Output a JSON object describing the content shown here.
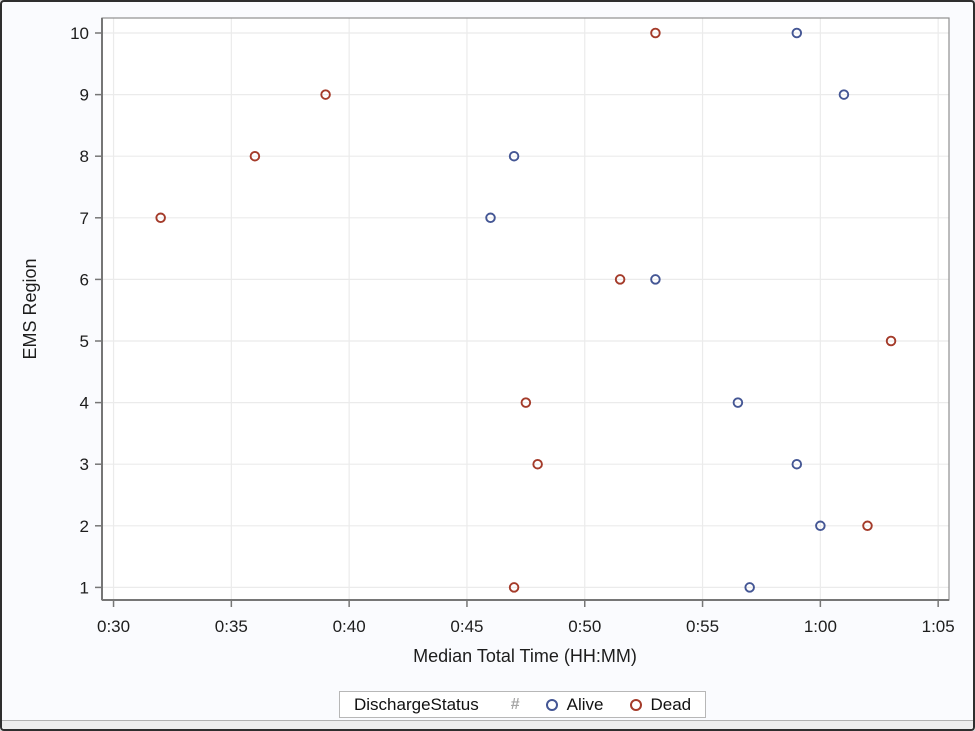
{
  "window": {
    "background": "#FAFBFE",
    "border_color": "#2e2e2e",
    "footer_strip_color": "#ededed"
  },
  "chart_data": {
    "type": "scatter",
    "title": "",
    "xlabel": "Median Total Time (HH:MM)",
    "ylabel": "EMS Region",
    "x_ticks": [
      {
        "minutes": 30,
        "label": "0:30"
      },
      {
        "minutes": 35,
        "label": "0:35"
      },
      {
        "minutes": 40,
        "label": "0:40"
      },
      {
        "minutes": 45,
        "label": "0:45"
      },
      {
        "minutes": 50,
        "label": "0:50"
      },
      {
        "minutes": 55,
        "label": "0:55"
      },
      {
        "minutes": 60,
        "label": "1:00"
      },
      {
        "minutes": 65,
        "label": "1:05"
      }
    ],
    "y_ticks": [
      1,
      2,
      3,
      4,
      5,
      6,
      7,
      8,
      9,
      10
    ],
    "xlim_minutes": [
      29.51,
      65.46
    ],
    "ylim": [
      0.7955,
      10.2435
    ],
    "grid": true,
    "gridline_color": "#ebebeb",
    "frame_color": "#8f8f8f",
    "axis_line_color": "#767676",
    "legend": {
      "position": "bottom",
      "title": "DischargeStatus",
      "missing_symbol": "#",
      "missing_symbol_color": "#a6a6a6",
      "entries": [
        {
          "label": "Alive",
          "marker": "open-circle",
          "color": "#445694"
        },
        {
          "label": "Dead",
          "marker": "open-circle",
          "color": "#A43B2A"
        }
      ]
    },
    "series": [
      {
        "name": "Alive",
        "color": "#445694",
        "marker": "open-circle",
        "points": [
          {
            "region": 1,
            "minutes": 57
          },
          {
            "region": 2,
            "minutes": 60
          },
          {
            "region": 3,
            "minutes": 59
          },
          {
            "region": 4,
            "minutes": 56.5
          },
          {
            "region": 6,
            "minutes": 53
          },
          {
            "region": 7,
            "minutes": 46
          },
          {
            "region": 8,
            "minutes": 47
          },
          {
            "region": 9,
            "minutes": 61
          },
          {
            "region": 10,
            "minutes": 59
          }
        ]
      },
      {
        "name": "Dead",
        "color": "#A43B2A",
        "marker": "open-circle",
        "points": [
          {
            "region": 1,
            "minutes": 47
          },
          {
            "region": 2,
            "minutes": 62
          },
          {
            "region": 3,
            "minutes": 48
          },
          {
            "region": 4,
            "minutes": 47.5
          },
          {
            "region": 5,
            "minutes": 63
          },
          {
            "region": 6,
            "minutes": 51.5
          },
          {
            "region": 7,
            "minutes": 32
          },
          {
            "region": 8,
            "minutes": 36
          },
          {
            "region": 9,
            "minutes": 39
          },
          {
            "region": 10,
            "minutes": 53
          }
        ]
      }
    ]
  }
}
